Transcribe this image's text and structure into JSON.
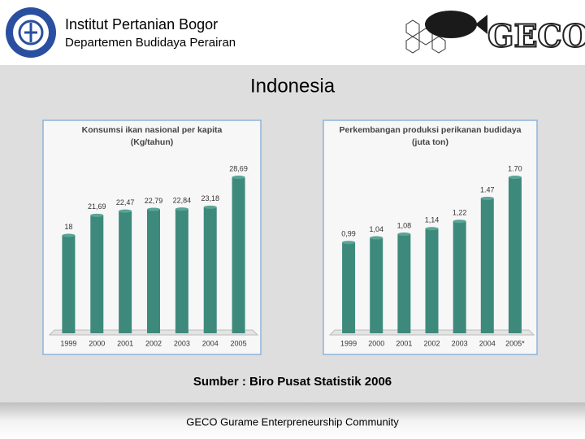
{
  "header": {
    "title": "Institut Pertanian Bogor",
    "subtitle": "Departemen Budidaya Perairan",
    "logo_text": "GECO"
  },
  "slide_title": "Indonesia",
  "chart_data": [
    {
      "type": "bar",
      "title": "Konsumsi ikan nasional per kapita",
      "subtitle": "(Kg/tahun)",
      "categories": [
        "1999",
        "2000",
        "2001",
        "2002",
        "2003",
        "2004",
        "2005"
      ],
      "values": [
        18,
        21.69,
        22.47,
        22.79,
        22.84,
        23.18,
        28.69
      ],
      "value_labels": [
        "18",
        "21,69",
        "22,47",
        "22,79",
        "22,84",
        "23,18",
        "28,69"
      ],
      "color": "#3d8a7c"
    },
    {
      "type": "bar",
      "title": "Perkembangan produksi perikanan budidaya",
      "subtitle": "(juta ton)",
      "categories": [
        "1999",
        "2000",
        "2001",
        "2002",
        "2003",
        "2004",
        "2005*"
      ],
      "values": [
        0.99,
        1.04,
        1.08,
        1.14,
        1.22,
        1.47,
        1.7
      ],
      "value_labels": [
        "0,99",
        "1,04",
        "1,08",
        "1,14",
        "1,22",
        "1.47",
        "1.70"
      ],
      "color": "#3d8a7c"
    }
  ],
  "source": "Sumber : Biro Pusat Statistik 2006",
  "footer": "GECO  Gurame Enterpreneurship Community"
}
